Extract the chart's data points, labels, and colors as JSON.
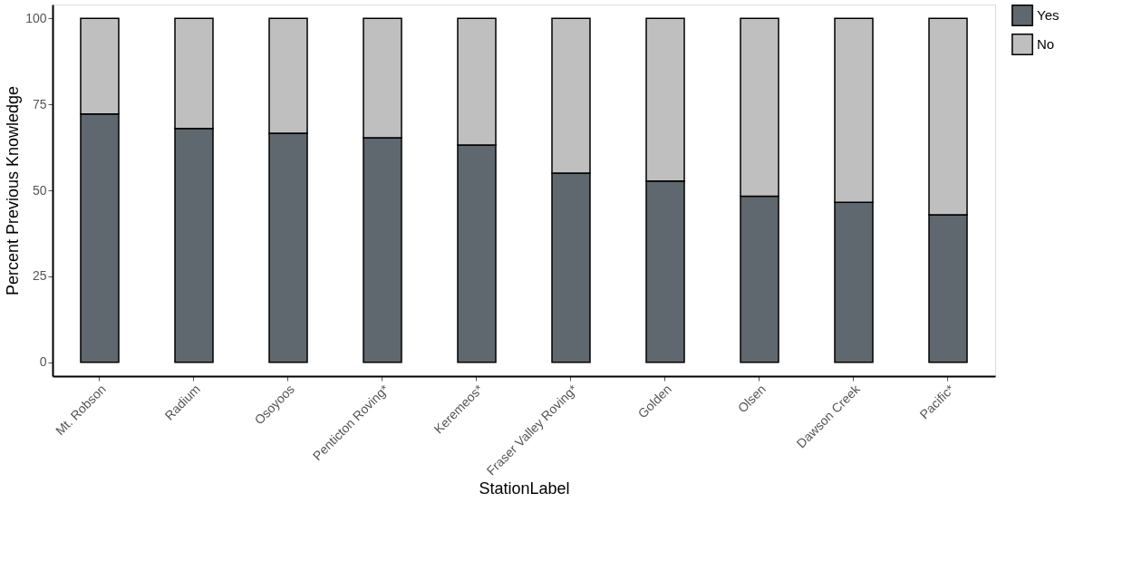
{
  "chart_data": {
    "type": "bar",
    "stacked": true,
    "xlabel": "StationLabel",
    "ylabel": "Percent Previous Knowledge",
    "categories": [
      "Mt. Robson",
      "Radium",
      "Osoyoos",
      "Penticton Roving*",
      "Keremeos*",
      "Fraser Valley Roving*",
      "Golden",
      "Olsen",
      "Dawson Creek",
      "Pacific*"
    ],
    "series": [
      {
        "name": "Yes",
        "color": "#5f686e",
        "values": [
          72.2,
          68,
          66.6,
          65.3,
          63.2,
          55,
          52.7,
          48.3,
          46.5,
          42.9
        ]
      },
      {
        "name": "No",
        "color": "#bfbfbf",
        "values": [
          27.8,
          32,
          33.4,
          34.7,
          36.8,
          45,
          47.3,
          51.7,
          53.5,
          57.1
        ]
      }
    ],
    "ylim": [
      -4,
      104
    ],
    "yticks": [
      0,
      25,
      50,
      75,
      100
    ],
    "grid": false,
    "legend": "right"
  }
}
